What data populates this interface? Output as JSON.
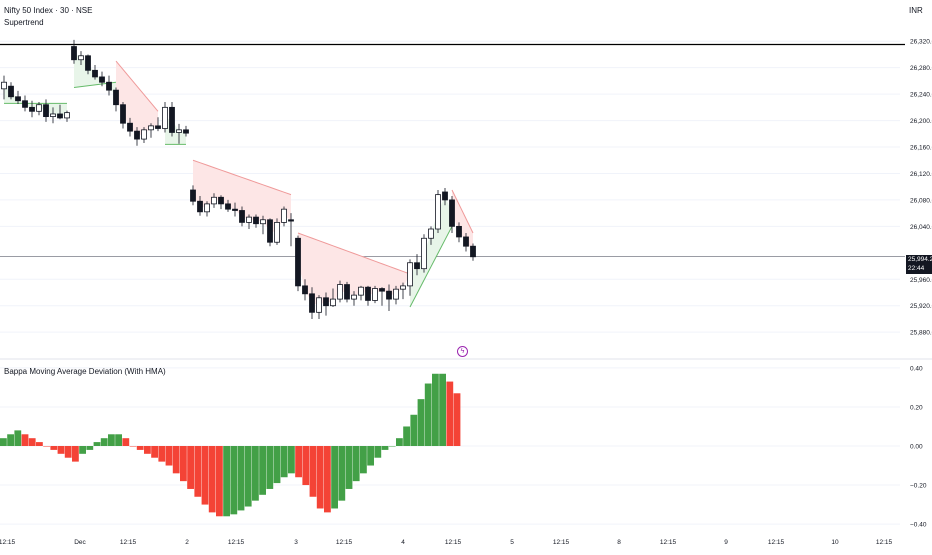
{
  "header": {
    "symbol_title": "Nifty 50 Index · 30 · NSE",
    "currency": "INR",
    "indicator": "Supertrend"
  },
  "lower_panel": {
    "title": "Bappa Moving Average Deviation (With HMA)"
  },
  "price_badge": {
    "price": "25,994.25",
    "countdown": "22:44"
  },
  "colors": {
    "up_bar": "#43a047",
    "down_bar": "#f44336",
    "supertrend_up": "#66bb6a",
    "supertrend_down": "#ef9a9a",
    "fill_up": "#e8f5e9",
    "fill_down": "#fde6e6",
    "price_line": "#000000"
  },
  "chart_data": [
    {
      "type": "candlestick",
      "title": "Nifty 50 Index · 30 · NSE",
      "overlay": "Supertrend",
      "ylim": [
        25850,
        26340
      ],
      "yticks": [
        "26,320.00",
        "26,280.00",
        "26,240.00",
        "26,200.00",
        "26,160.00",
        "26,120.00",
        "26,080.00",
        "26,040.00",
        "25,960.00",
        "25,920.00",
        "25,880.00"
      ],
      "yticks_values": [
        26320,
        26280,
        26240,
        26200,
        26160,
        26120,
        26080,
        26040,
        25960,
        25920,
        25880
      ],
      "xticks": [
        "12:15",
        "Dec",
        "12:15",
        "2",
        "12:15",
        "3",
        "12:15",
        "4",
        "12:15",
        "5",
        "12:15",
        "8",
        "12:15",
        "9",
        "12:15",
        "10",
        "12:15"
      ],
      "last_price": 25994.25,
      "horizontal_line": 26315,
      "candles": [
        {
          "o": 26248,
          "h": 26268,
          "l": 26232,
          "c": 26258
        },
        {
          "o": 26252,
          "h": 26258,
          "l": 26232,
          "c": 26236
        },
        {
          "o": 26236,
          "h": 26245,
          "l": 26225,
          "c": 26230
        },
        {
          "o": 26230,
          "h": 26238,
          "l": 26214,
          "c": 26220
        },
        {
          "o": 26220,
          "h": 26230,
          "l": 26205,
          "c": 26214
        },
        {
          "o": 26214,
          "h": 26228,
          "l": 26208,
          "c": 26224
        },
        {
          "o": 26224,
          "h": 26232,
          "l": 26198,
          "c": 26206
        },
        {
          "o": 26206,
          "h": 26220,
          "l": 26196,
          "c": 26210
        },
        {
          "o": 26210,
          "h": 26224,
          "l": 26202,
          "c": 26204
        },
        {
          "o": 26204,
          "h": 26215,
          "l": 26198,
          "c": 26212
        },
        {
          "o": 26312,
          "h": 26322,
          "l": 26286,
          "c": 26292
        },
        {
          "o": 26292,
          "h": 26305,
          "l": 26284,
          "c": 26298
        },
        {
          "o": 26298,
          "h": 26300,
          "l": 26270,
          "c": 26276
        },
        {
          "o": 26276,
          "h": 26284,
          "l": 26262,
          "c": 26266
        },
        {
          "o": 26266,
          "h": 26274,
          "l": 26252,
          "c": 26258
        },
        {
          "o": 26258,
          "h": 26268,
          "l": 26238,
          "c": 26246
        },
        {
          "o": 26246,
          "h": 26250,
          "l": 26214,
          "c": 26224
        },
        {
          "o": 26224,
          "h": 26228,
          "l": 26188,
          "c": 26196
        },
        {
          "o": 26196,
          "h": 26204,
          "l": 26176,
          "c": 26184
        },
        {
          "o": 26184,
          "h": 26190,
          "l": 26162,
          "c": 26172
        },
        {
          "o": 26172,
          "h": 26190,
          "l": 26166,
          "c": 26186
        },
        {
          "o": 26186,
          "h": 26196,
          "l": 26174,
          "c": 26192
        },
        {
          "o": 26192,
          "h": 26205,
          "l": 26184,
          "c": 26188
        },
        {
          "o": 26188,
          "h": 26228,
          "l": 26182,
          "c": 26220
        },
        {
          "o": 26220,
          "h": 26228,
          "l": 26176,
          "c": 26182
        },
        {
          "o": 26182,
          "h": 26195,
          "l": 26165,
          "c": 26186
        },
        {
          "o": 26186,
          "h": 26192,
          "l": 26176,
          "c": 26181
        },
        {
          "o": 26095,
          "h": 26102,
          "l": 26072,
          "c": 26078
        },
        {
          "o": 26078,
          "h": 26086,
          "l": 26056,
          "c": 26062
        },
        {
          "o": 26062,
          "h": 26078,
          "l": 26055,
          "c": 26074
        },
        {
          "o": 26074,
          "h": 26090,
          "l": 26068,
          "c": 26084
        },
        {
          "o": 26084,
          "h": 26087,
          "l": 26066,
          "c": 26074
        },
        {
          "o": 26074,
          "h": 26080,
          "l": 26062,
          "c": 26066
        },
        {
          "o": 26066,
          "h": 26076,
          "l": 26055,
          "c": 26064
        },
        {
          "o": 26064,
          "h": 26070,
          "l": 26040,
          "c": 26046
        },
        {
          "o": 26046,
          "h": 26058,
          "l": 26036,
          "c": 26054
        },
        {
          "o": 26054,
          "h": 26058,
          "l": 26038,
          "c": 26044
        },
        {
          "o": 26044,
          "h": 26056,
          "l": 26028,
          "c": 26050
        },
        {
          "o": 26050,
          "h": 26052,
          "l": 26010,
          "c": 26016
        },
        {
          "o": 26016,
          "h": 26052,
          "l": 26012,
          "c": 26046
        },
        {
          "o": 26046,
          "h": 26070,
          "l": 26040,
          "c": 26066
        },
        {
          "o": 26050,
          "h": 26060,
          "l": 26010,
          "c": 26048
        },
        {
          "o": 26022,
          "h": 26026,
          "l": 25942,
          "c": 25950
        },
        {
          "o": 25950,
          "h": 25960,
          "l": 25928,
          "c": 25938
        },
        {
          "o": 25938,
          "h": 25948,
          "l": 25900,
          "c": 25910
        },
        {
          "o": 25910,
          "h": 25936,
          "l": 25900,
          "c": 25932
        },
        {
          "o": 25932,
          "h": 25940,
          "l": 25905,
          "c": 25920
        },
        {
          "o": 25920,
          "h": 25946,
          "l": 25918,
          "c": 25930
        },
        {
          "o": 25930,
          "h": 25958,
          "l": 25925,
          "c": 25952
        },
        {
          "o": 25952,
          "h": 25956,
          "l": 25925,
          "c": 25930
        },
        {
          "o": 25930,
          "h": 25942,
          "l": 25920,
          "c": 25936
        },
        {
          "o": 25936,
          "h": 25950,
          "l": 25928,
          "c": 25948
        },
        {
          "o": 25948,
          "h": 25950,
          "l": 25920,
          "c": 25928
        },
        {
          "o": 25928,
          "h": 25950,
          "l": 25924,
          "c": 25946
        },
        {
          "o": 25946,
          "h": 25948,
          "l": 25920,
          "c": 25942
        },
        {
          "o": 25942,
          "h": 25952,
          "l": 25912,
          "c": 25930
        },
        {
          "o": 25930,
          "h": 25950,
          "l": 25922,
          "c": 25945
        },
        {
          "o": 25945,
          "h": 25955,
          "l": 25930,
          "c": 25950
        },
        {
          "o": 25950,
          "h": 25990,
          "l": 25935,
          "c": 25985
        },
        {
          "o": 25985,
          "h": 25998,
          "l": 25966,
          "c": 25976
        },
        {
          "o": 25976,
          "h": 26028,
          "l": 25970,
          "c": 26022
        },
        {
          "o": 26022,
          "h": 26040,
          "l": 26012,
          "c": 26036
        },
        {
          "o": 26036,
          "h": 26095,
          "l": 26030,
          "c": 26088
        },
        {
          "o": 26092,
          "h": 26098,
          "l": 26072,
          "c": 26080
        },
        {
          "o": 26080,
          "h": 26086,
          "l": 26030,
          "c": 26040
        },
        {
          "o": 26040,
          "h": 26046,
          "l": 26016,
          "c": 26024
        },
        {
          "o": 26024,
          "h": 26030,
          "l": 26002,
          "c": 26010
        },
        {
          "o": 26010,
          "h": 26014,
          "l": 25988,
          "c": 25994
        }
      ],
      "supertrend": [
        {
          "from": 0,
          "to": 9,
          "dir": "up",
          "start": 26226,
          "end": 26226
        },
        {
          "from": 10,
          "to": 16,
          "dir": "up",
          "start": 26250,
          "end": 26258
        },
        {
          "from": 16,
          "to": 22,
          "dir": "down",
          "start": 26290,
          "end": 26214
        },
        {
          "from": 23,
          "to": 26,
          "dir": "up",
          "start": 26164,
          "end": 26164
        },
        {
          "from": 27,
          "to": 41,
          "dir": "down",
          "start": 26140,
          "end": 26088
        },
        {
          "from": 42,
          "to": 58,
          "dir": "down",
          "start": 26030,
          "end": 25968
        },
        {
          "from": 58,
          "to": 64,
          "dir": "up",
          "start": 25918,
          "end": 26040
        },
        {
          "from": 64,
          "to": 67,
          "dir": "down",
          "start": 26095,
          "end": 26030
        }
      ]
    },
    {
      "type": "bar",
      "title": "Bappa Moving Average Deviation (With HMA)",
      "ylim": [
        -0.42,
        0.42
      ],
      "yticks": [
        "0.40",
        "0.20",
        "0.00",
        "−0.20",
        "−0.40"
      ],
      "yticks_values": [
        0.4,
        0.2,
        0.0,
        -0.2,
        -0.4
      ],
      "values": [
        0.04,
        0.06,
        0.08,
        0.06,
        0.04,
        0.02,
        0.0,
        -0.02,
        -0.04,
        -0.06,
        -0.08,
        -0.04,
        -0.02,
        0.02,
        0.04,
        0.06,
        0.06,
        0.04,
        0.0,
        -0.02,
        -0.04,
        -0.06,
        -0.08,
        -0.1,
        -0.14,
        -0.18,
        -0.22,
        -0.26,
        -0.3,
        -0.34,
        -0.36,
        -0.36,
        -0.35,
        -0.33,
        -0.31,
        -0.28,
        -0.25,
        -0.22,
        -0.19,
        -0.16,
        -0.14,
        -0.16,
        -0.2,
        -0.26,
        -0.32,
        -0.34,
        -0.32,
        -0.28,
        -0.22,
        -0.18,
        -0.14,
        -0.1,
        -0.06,
        -0.02,
        0.0,
        0.04,
        0.1,
        0.16,
        0.24,
        0.32,
        0.37,
        0.37,
        0.33,
        0.27
      ],
      "colors": [
        "g",
        "g",
        "g",
        "r",
        "r",
        "r",
        "r",
        "r",
        "r",
        "r",
        "r",
        "g",
        "g",
        "g",
        "g",
        "g",
        "g",
        "r",
        "r",
        "r",
        "r",
        "r",
        "r",
        "r",
        "r",
        "r",
        "r",
        "r",
        "r",
        "r",
        "r",
        "g",
        "g",
        "g",
        "g",
        "g",
        "g",
        "g",
        "g",
        "g",
        "g",
        "r",
        "r",
        "r",
        "r",
        "r",
        "g",
        "g",
        "g",
        "g",
        "g",
        "g",
        "g",
        "g",
        "g",
        "g",
        "g",
        "g",
        "g",
        "g",
        "g",
        "g",
        "r",
        "r"
      ]
    }
  ]
}
